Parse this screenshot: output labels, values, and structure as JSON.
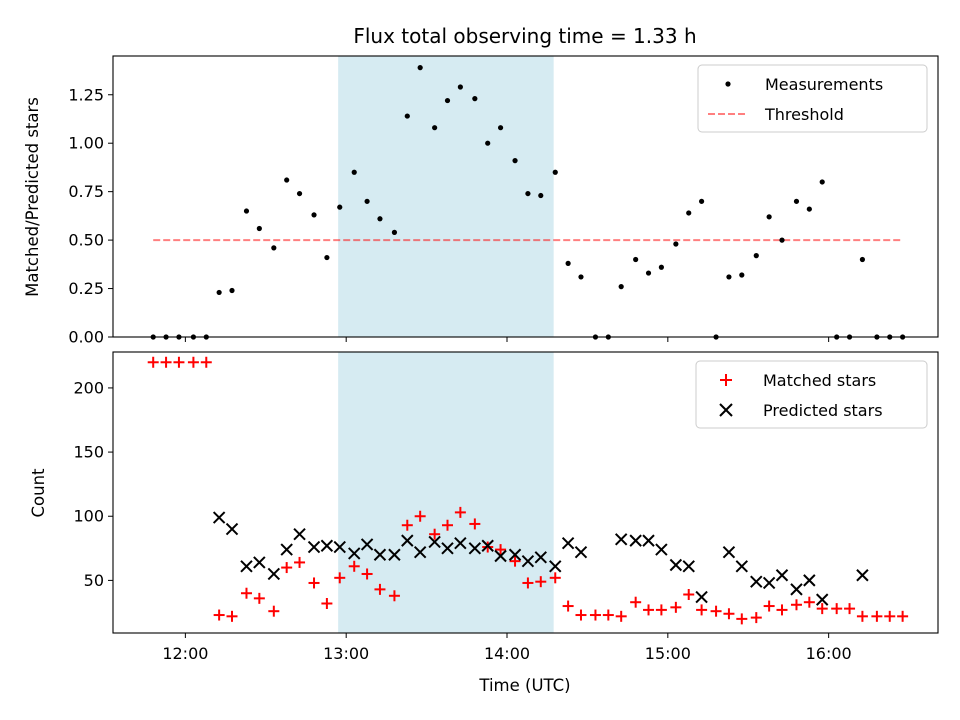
{
  "chart_data": [
    {
      "type": "scatter",
      "title": "Flux total observing time = 1.33 h",
      "ylabel": "Matched/Predicted stars",
      "xlabel": "",
      "ylim": [
        0,
        1.45
      ],
      "yticks": [
        0.0,
        0.25,
        0.5,
        0.75,
        1.0,
        1.25
      ],
      "ytick_labels": [
        "0.00",
        "0.25",
        "0.50",
        "0.75",
        "1.00",
        "1.25"
      ],
      "xlim_hours": [
        11.55,
        16.68
      ],
      "xticks_hours": [
        12,
        13,
        14,
        15,
        16
      ],
      "shaded_interval_hours": [
        12.95,
        14.29
      ],
      "shade_color": "#add8e6",
      "legend": [
        {
          "label": "Measurements",
          "marker": "dot",
          "color": "#000000"
        },
        {
          "label": "Threshold",
          "marker": "dashed-line",
          "color": "#ff0000"
        }
      ],
      "threshold": {
        "value": 0.5,
        "x_range_hours": [
          11.8,
          16.46
        ]
      },
      "series": [
        {
          "name": "Measurements",
          "color": "#000000",
          "x_hours": [
            11.8,
            11.88,
            11.96,
            12.05,
            12.13,
            12.21,
            12.29,
            12.38,
            12.46,
            12.55,
            12.63,
            12.71,
            12.8,
            12.88,
            12.96,
            13.05,
            13.13,
            13.21,
            13.3,
            13.38,
            13.46,
            13.55,
            13.63,
            13.71,
            13.8,
            13.88,
            13.96,
            14.05,
            14.13,
            14.21,
            14.3,
            14.38,
            14.46,
            14.55,
            14.63,
            14.71,
            14.8,
            14.88,
            14.96,
            15.05,
            15.13,
            15.21,
            15.3,
            15.38,
            15.46,
            15.55,
            15.63,
            15.71,
            15.8,
            15.88,
            15.96,
            16.05,
            16.13,
            16.21,
            16.3,
            16.38,
            16.46
          ],
          "y": [
            0.0,
            0.0,
            0.0,
            0.0,
            0.0,
            0.23,
            0.24,
            0.65,
            0.56,
            0.46,
            0.81,
            0.74,
            0.63,
            0.41,
            0.67,
            0.85,
            0.7,
            0.61,
            0.54,
            1.14,
            1.39,
            1.08,
            1.22,
            1.29,
            1.23,
            1.0,
            1.08,
            0.91,
            0.74,
            0.73,
            0.85,
            0.38,
            0.31,
            0.0,
            0.0,
            0.26,
            0.4,
            0.33,
            0.36,
            0.48,
            0.64,
            0.7,
            0.0,
            0.31,
            0.32,
            0.42,
            0.62,
            0.5,
            0.7,
            0.66,
            0.8,
            0.0,
            0.0,
            0.4,
            0.0,
            0.0,
            0.0
          ]
        }
      ]
    },
    {
      "type": "scatter",
      "title": "",
      "ylabel": "Count",
      "xlabel": "Time (UTC)",
      "ylim": [
        9,
        228
      ],
      "yticks": [
        50,
        100,
        150,
        200
      ],
      "ytick_labels": [
        "50",
        "100",
        "150",
        "200"
      ],
      "xlim_hours": [
        11.55,
        16.68
      ],
      "xticks_hours": [
        12,
        13,
        14,
        15,
        16
      ],
      "xtick_labels": [
        "12:00",
        "13:00",
        "14:00",
        "15:00",
        "16:00"
      ],
      "shaded_interval_hours": [
        12.95,
        14.29
      ],
      "shade_color": "#add8e6",
      "legend": [
        {
          "label": "Matched stars",
          "marker": "plus",
          "color": "#ff0000"
        },
        {
          "label": "Predicted stars",
          "marker": "x",
          "color": "#000000"
        }
      ],
      "series": [
        {
          "name": "Matched stars",
          "marker": "plus",
          "color": "#ff0000",
          "x_hours": [
            11.8,
            11.88,
            11.96,
            12.05,
            12.13,
            12.21,
            12.29,
            12.38,
            12.46,
            12.55,
            12.63,
            12.71,
            12.8,
            12.88,
            12.96,
            13.05,
            13.13,
            13.21,
            13.3,
            13.38,
            13.46,
            13.55,
            13.63,
            13.71,
            13.8,
            13.88,
            13.96,
            14.05,
            14.13,
            14.21,
            14.3,
            14.38,
            14.46,
            14.55,
            14.63,
            14.71,
            14.8,
            14.88,
            14.96,
            15.05,
            15.13,
            15.21,
            15.3,
            15.38,
            15.46,
            15.55,
            15.63,
            15.71,
            15.8,
            15.88,
            15.96,
            16.05,
            16.13,
            16.21,
            16.3,
            16.38,
            16.46
          ],
          "y": [
            220,
            220,
            220,
            220,
            220,
            23,
            22,
            40,
            36,
            26,
            60,
            64,
            48,
            32,
            52,
            61,
            55,
            43,
            38,
            93,
            100,
            86,
            93,
            103,
            94,
            76,
            74,
            65,
            48,
            49,
            52,
            30,
            23,
            23,
            23,
            22,
            33,
            27,
            27,
            29,
            39,
            27,
            26,
            24,
            20,
            21,
            30,
            27,
            31,
            33,
            28,
            28,
            28,
            22,
            22,
            22,
            22
          ]
        },
        {
          "name": "Predicted stars",
          "marker": "x",
          "color": "#000000",
          "x_hours": [
            12.21,
            12.29,
            12.38,
            12.46,
            12.55,
            12.63,
            12.71,
            12.8,
            12.88,
            12.96,
            13.05,
            13.13,
            13.21,
            13.3,
            13.38,
            13.46,
            13.55,
            13.63,
            13.71,
            13.8,
            13.88,
            13.96,
            14.05,
            14.13,
            14.21,
            14.3,
            14.38,
            14.46,
            14.71,
            14.8,
            14.88,
            14.96,
            15.05,
            15.13,
            15.21,
            15.38,
            15.46,
            15.55,
            15.63,
            15.71,
            15.8,
            15.88,
            15.96,
            16.21
          ],
          "y": [
            99,
            90,
            61,
            64,
            55,
            74,
            86,
            76,
            77,
            76,
            71,
            78,
            70,
            70,
            81,
            72,
            80,
            75,
            79,
            75,
            77,
            69,
            70,
            65,
            68,
            61,
            79,
            72,
            82,
            81,
            81,
            74,
            62,
            61,
            37,
            72,
            61,
            49,
            48,
            54,
            43,
            50,
            35,
            54
          ]
        }
      ]
    }
  ]
}
